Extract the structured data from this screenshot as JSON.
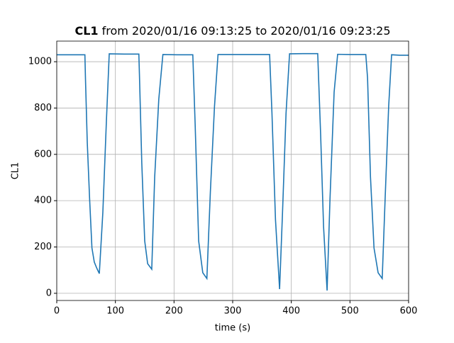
{
  "chart_data": {
    "type": "line",
    "title_bold": "CL1",
    "title": "from 2020/01/16 09:13:25 to 2020/01/16 09:23:25",
    "xlabel": "time (s)",
    "ylabel": "CL1",
    "x": [
      0,
      20,
      48,
      49,
      52,
      56,
      60,
      64,
      68,
      72.6,
      78.6,
      84.7,
      89.5,
      115,
      140,
      141,
      145,
      150,
      155,
      162,
      167,
      174,
      181,
      205,
      232,
      236,
      242,
      249,
      256,
      262,
      269,
      275,
      320,
      363,
      367,
      373,
      380,
      385,
      391,
      397,
      420,
      445,
      450,
      455,
      461,
      466,
      473,
      479,
      500,
      527,
      530,
      535,
      541,
      548,
      555,
      560,
      566,
      571,
      585,
      600
    ],
    "series": [
      {
        "name": "CL1",
        "color": "#1f77b4",
        "values": [
          1030,
          1030,
          1030,
          925,
          654,
          410,
          196,
          135,
          110,
          85,
          349,
          746,
          1034,
          1033,
          1033,
          945,
          563,
          226,
          128,
          104,
          502,
          838,
          1031,
          1030,
          1030,
          731,
          226,
          89,
          64,
          440,
          807,
          1031,
          1031,
          1031,
          777,
          318,
          18,
          349,
          777,
          1034,
          1035,
          1035,
          685,
          287,
          12,
          410,
          869,
          1032,
          1031,
          1031,
          930,
          502,
          196,
          89,
          64,
          410,
          807,
          1030,
          1028,
          1028
        ]
      }
    ],
    "xlim": [
      0,
      600
    ],
    "ylim": [
      -31,
      1089
    ],
    "xticks": [
      0,
      100,
      200,
      300,
      400,
      500,
      600
    ],
    "yticks": [
      0,
      200,
      400,
      600,
      800,
      1000
    ],
    "grid": true
  }
}
